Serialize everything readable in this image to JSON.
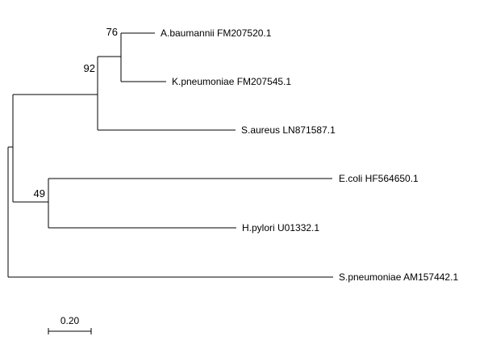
{
  "tree": {
    "taxa": [
      {
        "id": "ab",
        "label": "A.baumannii FM207520.1"
      },
      {
        "id": "kp",
        "label": "K.pneumoniae FM207545.1"
      },
      {
        "id": "sa",
        "label": "S.aureus LN871587.1"
      },
      {
        "id": "ec",
        "label": "E.coli HF564650.1"
      },
      {
        "id": "hp",
        "label": "H.pylori U01332.1"
      },
      {
        "id": "sp",
        "label": "S.pneumoniae AM157442.1"
      }
    ],
    "newick": "(((A.baumannii FM207520.1,K.pneumoniae FM207545.1)76,S.aureus LN871587.1)92,(E.coli HF564650.1,H.pylori U01332.1)49,S.pneumoniae AM157442.1);",
    "bootstrap": [
      {
        "clade": "A.baumannii FM207520.1 + K.pneumoniae FM207545.1",
        "value": "76"
      },
      {
        "clade": "A.baumannii FM207520.1 + K.pneumoniae FM207545.1 + S.aureus LN871587.1",
        "value": "92"
      },
      {
        "clade": "E.coli HF564650.1 + H.pylori U01332.1",
        "value": "49"
      }
    ],
    "scale_bar": {
      "label": "0.20",
      "length": 0.2
    }
  }
}
